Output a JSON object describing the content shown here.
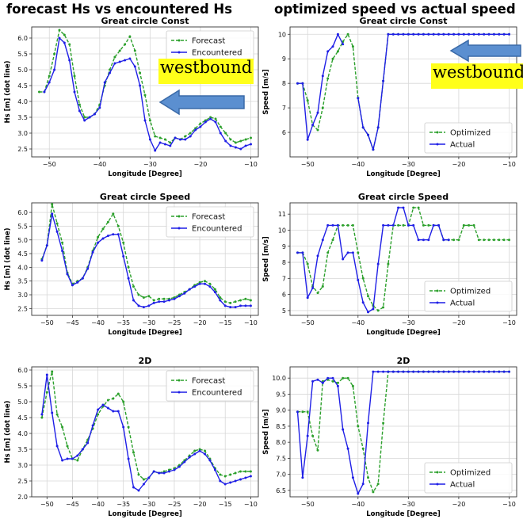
{
  "column_titles": {
    "left": "forecast Hs vs encountered Hs",
    "right": "optimized speed vs actual speed"
  },
  "annotations": {
    "label": "westbound",
    "color": "#ffff1a",
    "arrow_color": "#5b8fd0"
  },
  "chart_data": [
    {
      "type": "line",
      "title": "Great circle Const",
      "xlabel": "Longitude [Degree]",
      "ylabel": "Hs [m] (dot line)",
      "xlim": [
        -53.5,
        -8.5
      ],
      "ylim": [
        2.25,
        6.35
      ],
      "xticks": [
        -50,
        -40,
        -30,
        -20,
        -10
      ],
      "xtick_labels": [
        "−50",
        "−40",
        "−30",
        "−20",
        "−10"
      ],
      "yticks": [
        2.5,
        3.0,
        3.5,
        4.0,
        4.5,
        5.0,
        5.5,
        6.0
      ],
      "ytick_labels": [
        "2.5",
        "3.0",
        "3.5",
        "4.0",
        "4.5",
        "5.0",
        "5.5",
        "6.0"
      ],
      "legend": "top-right",
      "grid": true,
      "x": [
        -52,
        -51,
        -50,
        -49,
        -48,
        -47,
        -46,
        -45,
        -44,
        -43,
        -42,
        -41,
        -40,
        -39,
        -38,
        -37,
        -36,
        -35,
        -34,
        -33,
        -32,
        -31,
        -30,
        -29,
        -28,
        -27,
        -26,
        -25,
        -24,
        -23,
        -22,
        -21,
        -20,
        -19,
        -18,
        -17,
        -16,
        -15,
        -14,
        -13,
        -12,
        -11,
        -10
      ],
      "series": [
        {
          "name": "Forecast",
          "color": "#2ca02c",
          "style": "dash",
          "values": [
            4.3,
            4.3,
            4.8,
            5.5,
            6.25,
            6.1,
            5.8,
            4.8,
            3.9,
            3.5,
            3.5,
            3.6,
            3.9,
            4.5,
            5.0,
            5.4,
            5.6,
            5.8,
            6.05,
            5.6,
            4.9,
            4.2,
            3.4,
            2.9,
            2.85,
            2.8,
            2.7,
            2.85,
            2.8,
            2.9,
            3.0,
            3.15,
            3.3,
            3.4,
            3.5,
            3.45,
            3.2,
            3.0,
            2.8,
            2.7,
            2.75,
            2.8,
            2.85
          ]
        },
        {
          "name": "Encountered",
          "color": "#1f1fe6",
          "style": "solid",
          "values": [
            null,
            4.3,
            4.6,
            5.0,
            6.0,
            5.85,
            5.3,
            4.3,
            3.7,
            3.4,
            3.5,
            3.6,
            3.8,
            4.6,
            4.9,
            5.2,
            5.25,
            5.3,
            5.35,
            5.1,
            4.5,
            3.4,
            2.8,
            2.45,
            2.7,
            2.65,
            2.6,
            2.85,
            2.8,
            2.8,
            2.9,
            3.1,
            3.2,
            3.35,
            3.45,
            3.35,
            3.0,
            2.75,
            2.6,
            2.55,
            2.5,
            2.6,
            2.65
          ]
        }
      ]
    },
    {
      "type": "line",
      "title": "Great circle Const",
      "xlabel": "Longitude [Degree]",
      "ylabel": "Speed [m/s]",
      "xlim": [
        -53.5,
        -8.5
      ],
      "ylim": [
        5.0,
        10.3
      ],
      "xticks": [
        -50,
        -40,
        -30,
        -20,
        -10
      ],
      "xtick_labels": [
        "−50",
        "−40",
        "−30",
        "−20",
        "−10"
      ],
      "yticks": [
        6,
        7,
        8,
        9,
        10
      ],
      "ytick_labels": [
        "6",
        "7",
        "8",
        "9",
        "10"
      ],
      "legend": "bottom-right",
      "grid": true,
      "x": [
        -52,
        -51,
        -50,
        -49,
        -48,
        -47,
        -46,
        -45,
        -44,
        -43,
        -42,
        -41,
        -40,
        -39,
        -38,
        -37,
        -36,
        -35,
        -34,
        -33,
        -32,
        -31,
        -30,
        -29,
        -28,
        -27,
        -26,
        -25,
        -24,
        -23,
        -22,
        -21,
        -20,
        -19,
        -18,
        -17,
        -16,
        -15,
        -14,
        -13,
        -12,
        -11,
        -10
      ],
      "series": [
        {
          "name": "Optimized",
          "color": "#2ca02c",
          "style": "dash",
          "values": [
            8.0,
            8.0,
            7.3,
            6.3,
            6.1,
            7.0,
            8.2,
            9.0,
            9.3,
            9.7,
            10.0,
            9.5,
            7.4,
            6.2,
            5.9,
            5.3,
            6.2,
            8.1,
            10.0,
            10.0,
            10.0,
            10.0,
            10.0,
            10.0,
            10.0,
            10.0,
            10.0,
            10.0,
            10.0,
            10.0,
            10.0,
            10.0,
            10.0,
            10.0,
            10.0,
            10.0,
            10.0,
            10.0,
            10.0,
            10.0,
            10.0,
            10.0,
            10.0
          ]
        },
        {
          "name": "Actual",
          "color": "#1f1fe6",
          "style": "solid",
          "values": [
            8.0,
            8.0,
            5.7,
            6.3,
            6.8,
            8.3,
            9.3,
            9.5,
            10.0,
            9.6,
            null,
            null,
            7.4,
            6.2,
            5.9,
            5.3,
            6.2,
            8.1,
            10.0,
            10.0,
            10.0,
            10.0,
            10.0,
            10.0,
            10.0,
            10.0,
            10.0,
            10.0,
            10.0,
            10.0,
            10.0,
            10.0,
            10.0,
            10.0,
            10.0,
            10.0,
            10.0,
            10.0,
            10.0,
            10.0,
            10.0,
            10.0,
            10.0
          ]
        }
      ]
    },
    {
      "type": "line",
      "title": "Great circle Speed",
      "xlabel": "Longitude [Degree]",
      "ylabel": "Hs [m] (dot line)",
      "xlim": [
        -53,
        -8.5
      ],
      "ylim": [
        2.25,
        6.35
      ],
      "xticks": [
        -50,
        -45,
        -40,
        -35,
        -30,
        -25,
        -20,
        -15,
        -10
      ],
      "xtick_labels": [
        "−50",
        "−45",
        "−40",
        "−35",
        "−30",
        "−25",
        "−20",
        "−15",
        "−10"
      ],
      "yticks": [
        2.5,
        3.0,
        3.5,
        4.0,
        4.5,
        5.0,
        5.5,
        6.0
      ],
      "ytick_labels": [
        "2.5",
        "3.0",
        "3.5",
        "4.0",
        "4.5",
        "5.0",
        "5.5",
        "6.0"
      ],
      "legend": "top-right",
      "grid": true,
      "x": [
        -51,
        -50,
        -49,
        -48,
        -47,
        -46,
        -45,
        -44,
        -43,
        -42,
        -41,
        -40,
        -39,
        -38,
        -37,
        -36,
        -35,
        -34,
        -33,
        -32,
        -31,
        -30,
        -29,
        -28,
        -27,
        -26,
        -25,
        -24,
        -23,
        -22,
        -21,
        -20,
        -19,
        -18,
        -17,
        -16,
        -15,
        -14,
        -13,
        -12,
        -11,
        -10
      ],
      "series": [
        {
          "name": "Forecast",
          "color": "#2ca02c",
          "style": "dash",
          "values": [
            4.3,
            4.8,
            6.3,
            5.6,
            4.9,
            3.8,
            3.4,
            3.5,
            3.6,
            4.0,
            4.6,
            5.1,
            5.4,
            5.65,
            5.95,
            5.5,
            4.9,
            4.0,
            3.3,
            3.0,
            2.9,
            2.95,
            2.8,
            2.85,
            2.85,
            2.85,
            2.9,
            3.0,
            3.1,
            3.2,
            3.35,
            3.45,
            3.5,
            3.4,
            3.2,
            2.9,
            2.75,
            2.7,
            2.75,
            2.8,
            2.85,
            2.8
          ]
        },
        {
          "name": "Encountered",
          "color": "#1f1fe6",
          "style": "solid",
          "values": [
            4.25,
            4.8,
            5.95,
            5.3,
            4.6,
            3.75,
            3.35,
            3.45,
            3.6,
            3.95,
            4.55,
            4.9,
            5.05,
            5.15,
            5.2,
            5.2,
            4.4,
            3.6,
            2.8,
            2.6,
            2.55,
            2.6,
            2.7,
            2.75,
            2.75,
            2.8,
            2.85,
            2.95,
            3.05,
            3.2,
            3.3,
            3.4,
            3.4,
            3.3,
            3.1,
            2.8,
            2.6,
            2.55,
            2.55,
            2.6,
            2.6,
            2.6
          ]
        }
      ]
    },
    {
      "type": "line",
      "title": "Great circle Speed",
      "xlabel": "Longitude [Degree]",
      "ylabel": "Speed [m/s]",
      "xlim": [
        -53.5,
        -8.5
      ],
      "ylim": [
        4.7,
        11.7
      ],
      "xticks": [
        -50,
        -40,
        -30,
        -20,
        -10
      ],
      "xtick_labels": [
        "−50",
        "−40",
        "−30",
        "−20",
        "−10"
      ],
      "yticks": [
        5,
        6,
        7,
        8,
        9,
        10,
        11
      ],
      "ytick_labels": [
        "5",
        "6",
        "7",
        "8",
        "9",
        "10",
        "11"
      ],
      "legend": "bottom-right",
      "grid": true,
      "x": [
        -52,
        -51,
        -50,
        -49,
        -48,
        -47,
        -46,
        -45,
        -44,
        -43,
        -42,
        -41,
        -40,
        -39,
        -38,
        -37,
        -36,
        -35,
        -34,
        -33,
        -32,
        -31,
        -30,
        -29,
        -28,
        -27,
        -26,
        -25,
        -24,
        -23,
        -22,
        -21,
        -20,
        -19,
        -18,
        -17,
        -16,
        -15,
        -14,
        -13,
        -12,
        -11,
        -10
      ],
      "series": [
        {
          "name": "Optimized",
          "color": "#2ca02c",
          "style": "dash",
          "values": [
            8.6,
            8.6,
            7.9,
            6.5,
            6.1,
            6.5,
            8.6,
            9.4,
            10.3,
            10.3,
            10.3,
            10.3,
            8.6,
            7.0,
            5.9,
            5.3,
            5.0,
            5.2,
            7.9,
            10.3,
            10.3,
            10.3,
            10.3,
            11.4,
            11.4,
            10.3,
            10.3,
            10.3,
            10.3,
            9.4,
            9.4,
            9.4,
            9.4,
            10.3,
            10.3,
            10.3,
            9.4,
            9.4,
            9.4,
            9.4,
            9.4,
            9.4,
            9.4
          ]
        },
        {
          "name": "Actual",
          "color": "#1f1fe6",
          "style": "solid",
          "values": [
            8.6,
            8.6,
            5.8,
            6.4,
            8.4,
            9.4,
            10.3,
            10.3,
            10.3,
            8.2,
            8.6,
            8.6,
            6.9,
            5.5,
            4.9,
            5.1,
            7.9,
            10.3,
            10.3,
            10.3,
            11.4,
            11.4,
            10.3,
            10.3,
            9.4,
            9.4,
            9.4,
            10.3,
            10.3,
            9.4,
            9.4,
            null,
            null,
            null,
            null,
            null,
            null,
            null,
            null,
            null,
            null,
            null,
            null
          ]
        }
      ]
    },
    {
      "type": "line",
      "title": "2D",
      "xlabel": "Longitude [Degree]",
      "ylabel": "Hs [m] (dot line)",
      "xlim": [
        -53,
        -8.5
      ],
      "ylim": [
        2.0,
        6.1
      ],
      "xticks": [
        -50,
        -45,
        -40,
        -35,
        -30,
        -25,
        -20,
        -15,
        -10
      ],
      "xtick_labels": [
        "−50",
        "−45",
        "−40",
        "−35",
        "−30",
        "−25",
        "−20",
        "−15",
        "−10"
      ],
      "yticks": [
        2.0,
        2.5,
        3.0,
        3.5,
        4.0,
        4.5,
        5.0,
        5.5,
        6.0
      ],
      "ytick_labels": [
        "2.0",
        "2.5",
        "3.0",
        "3.5",
        "4.0",
        "4.5",
        "5.0",
        "5.5",
        "6.0"
      ],
      "legend": "top-right",
      "grid": true,
      "x": [
        -51,
        -50,
        -49,
        -48,
        -47,
        -46,
        -45,
        -44,
        -43,
        -42,
        -41,
        -40,
        -39,
        -38,
        -37,
        -36,
        -35,
        -34,
        -33,
        -32,
        -31,
        -30,
        -29,
        -28,
        -27,
        -26,
        -25,
        -24,
        -23,
        -22,
        -21,
        -20,
        -19,
        -18,
        -17,
        -16,
        -15,
        -14,
        -13,
        -12,
        -11,
        -10
      ],
      "series": [
        {
          "name": "Forecast",
          "color": "#2ca02c",
          "style": "dash",
          "values": [
            4.5,
            5.3,
            5.95,
            4.6,
            4.2,
            3.6,
            3.2,
            3.15,
            3.5,
            3.8,
            4.15,
            4.6,
            4.85,
            5.05,
            5.1,
            5.25,
            5.0,
            4.2,
            3.4,
            2.7,
            2.55,
            2.6,
            2.8,
            2.75,
            2.8,
            2.85,
            2.9,
            3.0,
            3.15,
            3.3,
            3.45,
            3.5,
            3.45,
            3.2,
            2.9,
            2.7,
            2.65,
            2.7,
            2.75,
            2.8,
            2.8,
            2.8
          ]
        },
        {
          "name": "Encountered",
          "color": "#1f1fe6",
          "style": "solid",
          "values": [
            4.6,
            5.85,
            4.65,
            3.6,
            3.15,
            3.2,
            3.2,
            3.3,
            3.5,
            3.7,
            4.25,
            4.75,
            4.9,
            4.8,
            4.7,
            4.7,
            4.2,
            3.2,
            2.3,
            2.2,
            2.4,
            2.6,
            2.8,
            2.75,
            2.75,
            2.8,
            2.85,
            2.95,
            3.1,
            3.25,
            3.35,
            3.45,
            3.35,
            3.15,
            2.85,
            2.5,
            2.4,
            2.45,
            2.5,
            2.55,
            2.6,
            2.65
          ]
        }
      ]
    },
    {
      "type": "line",
      "title": "2D",
      "xlabel": "Longitude [Degree]",
      "ylabel": "Speed [m/s]",
      "xlim": [
        -53.5,
        -8.5
      ],
      "ylim": [
        6.3,
        10.35
      ],
      "xticks": [
        -50,
        -40,
        -30,
        -20,
        -10
      ],
      "xtick_labels": [
        "−50",
        "−40",
        "−30",
        "−20",
        "−10"
      ],
      "yticks": [
        6.5,
        7.0,
        7.5,
        8.0,
        8.5,
        9.0,
        9.5,
        10.0
      ],
      "ytick_labels": [
        "6.5",
        "7.0",
        "7.5",
        "8.0",
        "8.5",
        "9.0",
        "9.5",
        "10.0"
      ],
      "legend": "bottom-right",
      "grid": true,
      "x": [
        -52,
        -51,
        -50,
        -49,
        -48,
        -47,
        -46,
        -45,
        -44,
        -43,
        -42,
        -41,
        -40,
        -39,
        -38,
        -37,
        -36,
        -35,
        -34,
        -33,
        -32,
        -31,
        -30,
        -29,
        -28,
        -27,
        -26,
        -25,
        -24,
        -23,
        -22,
        -21,
        -20,
        -19,
        -18,
        -17,
        -16,
        -15,
        -14,
        -13,
        -12,
        -11,
        -10
      ],
      "series": [
        {
          "name": "Optimized",
          "color": "#2ca02c",
          "style": "dash",
          "values": [
            8.95,
            8.95,
            8.95,
            8.2,
            7.75,
            9.9,
            9.95,
            9.9,
            9.85,
            10.0,
            10.0,
            9.75,
            8.5,
            7.8,
            6.9,
            6.45,
            6.7,
            8.6,
            10.2,
            10.2,
            10.2,
            10.2,
            10.2,
            10.2,
            10.2,
            10.2,
            10.2,
            10.2,
            10.2,
            10.2,
            10.2,
            10.2,
            10.2,
            10.2,
            10.2,
            10.2,
            10.2,
            10.2,
            10.2,
            10.2,
            10.2,
            10.2,
            10.2
          ]
        },
        {
          "name": "Actual",
          "color": "#1f1fe6",
          "style": "solid",
          "values": [
            8.95,
            6.9,
            8.2,
            9.9,
            9.95,
            9.85,
            10.0,
            10.0,
            9.75,
            8.4,
            7.8,
            6.9,
            6.4,
            6.7,
            8.6,
            10.2,
            10.2,
            10.2,
            10.2,
            10.2,
            10.2,
            10.2,
            10.2,
            10.2,
            10.2,
            10.2,
            10.2,
            10.2,
            10.2,
            10.2,
            10.2,
            10.2,
            10.2,
            10.2,
            10.2,
            10.2,
            10.2,
            10.2,
            10.2,
            10.2,
            10.2,
            10.2,
            10.2
          ]
        }
      ]
    }
  ]
}
